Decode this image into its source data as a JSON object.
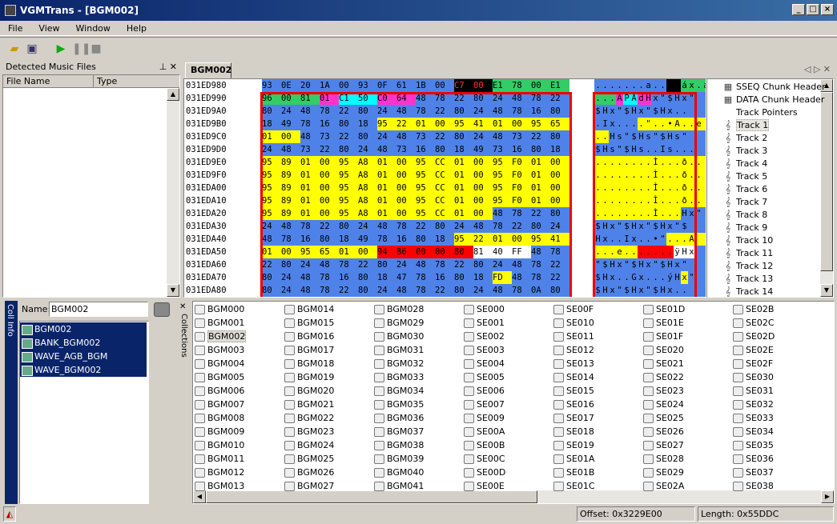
{
  "window": {
    "title": "VGMTrans - [BGM002]"
  },
  "menu": [
    "File",
    "View",
    "Window",
    "Help"
  ],
  "toolbar": [
    "open-folder-icon",
    "save-icon",
    "play-icon",
    "pause-icon",
    "stop-icon"
  ],
  "left_panel": {
    "title": "Detected Music Files",
    "columns": [
      "File Name",
      "Type"
    ]
  },
  "tab": {
    "label": "BGM002"
  },
  "hex": {
    "addresses": [
      "031ED980",
      "031ED990",
      "031ED9A0",
      "031ED9B0",
      "031ED9C0",
      "031ED9D0",
      "031ED9E0",
      "031ED9F0",
      "031EDA00",
      "031EDA10",
      "031EDA20",
      "031EDA30",
      "031EDA40",
      "031EDA50",
      "031EDA60",
      "031EDA70",
      "031EDA80"
    ],
    "rows": [
      [
        "93",
        "0E",
        "20",
        "1A",
        "00",
        "93",
        "0F",
        "61",
        "1B",
        "00",
        "C7",
        "00",
        "E1",
        "78",
        "00",
        "E1"
      ],
      [
        "96",
        "00",
        "81",
        "01",
        "C1",
        "50",
        "C0",
        "64",
        "48",
        "78",
        "22",
        "80",
        "24",
        "48",
        "78",
        "22"
      ],
      [
        "80",
        "24",
        "48",
        "78",
        "22",
        "80",
        "24",
        "48",
        "78",
        "22",
        "80",
        "24",
        "48",
        "78",
        "16",
        "80"
      ],
      [
        "18",
        "49",
        "78",
        "16",
        "80",
        "18",
        "95",
        "22",
        "01",
        "00",
        "95",
        "41",
        "01",
        "00",
        "95",
        "65"
      ],
      [
        "01",
        "00",
        "48",
        "73",
        "22",
        "80",
        "24",
        "48",
        "73",
        "22",
        "80",
        "24",
        "48",
        "73",
        "22",
        "80"
      ],
      [
        "24",
        "48",
        "73",
        "22",
        "80",
        "24",
        "48",
        "73",
        "16",
        "80",
        "18",
        "49",
        "73",
        "16",
        "80",
        "18"
      ],
      [
        "95",
        "89",
        "01",
        "00",
        "95",
        "A8",
        "01",
        "00",
        "95",
        "CC",
        "01",
        "00",
        "95",
        "F0",
        "01",
        "00"
      ],
      [
        "95",
        "89",
        "01",
        "00",
        "95",
        "A8",
        "01",
        "00",
        "95",
        "CC",
        "01",
        "00",
        "95",
        "F0",
        "01",
        "00"
      ],
      [
        "95",
        "89",
        "01",
        "00",
        "95",
        "A8",
        "01",
        "00",
        "95",
        "CC",
        "01",
        "00",
        "95",
        "F0",
        "01",
        "00"
      ],
      [
        "95",
        "89",
        "01",
        "00",
        "95",
        "A8",
        "01",
        "00",
        "95",
        "CC",
        "01",
        "00",
        "95",
        "F0",
        "01",
        "00"
      ],
      [
        "95",
        "89",
        "01",
        "00",
        "95",
        "A8",
        "01",
        "00",
        "95",
        "CC",
        "01",
        "00",
        "48",
        "78",
        "22",
        "80"
      ],
      [
        "24",
        "48",
        "78",
        "22",
        "80",
        "24",
        "48",
        "78",
        "22",
        "80",
        "24",
        "48",
        "78",
        "22",
        "80",
        "24"
      ],
      [
        "48",
        "78",
        "16",
        "80",
        "18",
        "49",
        "78",
        "16",
        "80",
        "18",
        "95",
        "22",
        "01",
        "00",
        "95",
        "41"
      ],
      [
        "01",
        "00",
        "95",
        "65",
        "01",
        "00",
        "94",
        "86",
        "00",
        "00",
        "80",
        "81",
        "40",
        "FF",
        "48",
        "78"
      ],
      [
        "22",
        "80",
        "24",
        "48",
        "78",
        "22",
        "80",
        "24",
        "48",
        "78",
        "22",
        "80",
        "24",
        "48",
        "78",
        "22"
      ],
      [
        "80",
        "24",
        "48",
        "78",
        "16",
        "80",
        "18",
        "47",
        "78",
        "16",
        "80",
        "18",
        "FD",
        "48",
        "78",
        "22"
      ],
      [
        "80",
        "24",
        "48",
        "78",
        "22",
        "80",
        "24",
        "48",
        "78",
        "22",
        "80",
        "24",
        "48",
        "78",
        "0A",
        "80"
      ]
    ],
    "ascii": [
      ".......a..Ç.áx.á",
      "...ÁPÀdHx\"$Hx\"",
      "$Hx\"$Hx\"$Hx..",
      ".Ix....\"..•A..e",
      "..Hs\"$Hs\"$Hs\"",
      "$Hs\"$Hs..Is...",
      "........Ì...ð..",
      "........Ì...ð..",
      "........Ì...ð..",
      "........Ì...ð..",
      "........Ì...Hx\"",
      "$Hx\"$Hx\"$Hx\"$",
      "Hx..Ix..•\"...A",
      "...e.......ÿHx",
      "\"$Hx\"$Hx\"$Hx\"",
      "$Hx..Gx...ýHx\"",
      "$Hx\"$Hx\"$Hx.."
    ]
  },
  "tree": [
    {
      "label": "SSEQ Chunk Header",
      "icon": "header-icon"
    },
    {
      "label": "DATA Chunk Header",
      "icon": "header-icon"
    },
    {
      "label": "Track Pointers",
      "icon": "blank-icon"
    },
    {
      "label": "Track 1",
      "icon": "treble-clef-icon"
    },
    {
      "label": "Track 2",
      "icon": "treble-clef-icon"
    },
    {
      "label": "Track 3",
      "icon": "treble-clef-icon"
    },
    {
      "label": "Track 4",
      "icon": "treble-clef-icon"
    },
    {
      "label": "Track 5",
      "icon": "treble-clef-icon"
    },
    {
      "label": "Track 6",
      "icon": "treble-clef-icon"
    },
    {
      "label": "Track 7",
      "icon": "treble-clef-icon"
    },
    {
      "label": "Track 8",
      "icon": "treble-clef-icon"
    },
    {
      "label": "Track 9",
      "icon": "treble-clef-icon"
    },
    {
      "label": "Track 10",
      "icon": "treble-clef-icon"
    },
    {
      "label": "Track 11",
      "icon": "treble-clef-icon"
    },
    {
      "label": "Track 12",
      "icon": "treble-clef-icon"
    },
    {
      "label": "Track 13",
      "icon": "treble-clef-icon"
    },
    {
      "label": "Track 14",
      "icon": "treble-clef-icon"
    }
  ],
  "coll_info": {
    "side_label": "Coll Info",
    "name_label": "Name:",
    "name_value": "BGM002",
    "files": [
      "BGM002",
      "BANK_BGM002",
      "WAVE_AGB_BGM",
      "WAVE_BGM002"
    ]
  },
  "collections": {
    "side_label": "Collections",
    "columns": [
      [
        "BGM000",
        "BGM001",
        "BGM002",
        "BGM003",
        "BGM004",
        "BGM005",
        "BGM006",
        "BGM007",
        "BGM008",
        "BGM009",
        "BGM010",
        "BGM011",
        "BGM012",
        "BGM013"
      ],
      [
        "BGM014",
        "BGM015",
        "BGM016",
        "BGM017",
        "BGM018",
        "BGM019",
        "BGM020",
        "BGM021",
        "BGM022",
        "BGM023",
        "BGM024",
        "BGM025",
        "BGM026",
        "BGM027"
      ],
      [
        "BGM028",
        "BGM029",
        "BGM030",
        "BGM031",
        "BGM032",
        "BGM033",
        "BGM034",
        "BGM035",
        "BGM036",
        "BGM037",
        "BGM038",
        "BGM039",
        "BGM040",
        "BGM041"
      ],
      [
        "SE000",
        "SE001",
        "SE002",
        "SE003",
        "SE004",
        "SE005",
        "SE006",
        "SE007",
        "SE009",
        "SE00A",
        "SE00B",
        "SE00C",
        "SE00D",
        "SE00E"
      ],
      [
        "SE00F",
        "SE010",
        "SE011",
        "SE012",
        "SE013",
        "SE014",
        "SE015",
        "SE016",
        "SE017",
        "SE018",
        "SE019",
        "SE01A",
        "SE01B",
        "SE01C"
      ],
      [
        "SE01D",
        "SE01E",
        "SE01F",
        "SE020",
        "SE021",
        "SE022",
        "SE023",
        "SE024",
        "SE025",
        "SE026",
        "SE027",
        "SE028",
        "SE029",
        "SE02A"
      ],
      [
        "SE02B",
        "SE02C",
        "SE02D",
        "SE02E",
        "SE02F",
        "SE030",
        "SE031",
        "SE032",
        "SE033",
        "SE034",
        "SE035",
        "SE036",
        "SE037",
        "SE038"
      ]
    ],
    "selected": "BGM002"
  },
  "status": {
    "offset": "Offset: 0x3229E00",
    "length": "Length: 0x55DDC"
  },
  "colors": {
    "blue": "#4f82e8",
    "yellow": "#ffff00",
    "red": "#ff0000",
    "green": "#33cc66",
    "cyan": "#00ffff",
    "magenta": "#ff33cc",
    "black": "#000000"
  }
}
